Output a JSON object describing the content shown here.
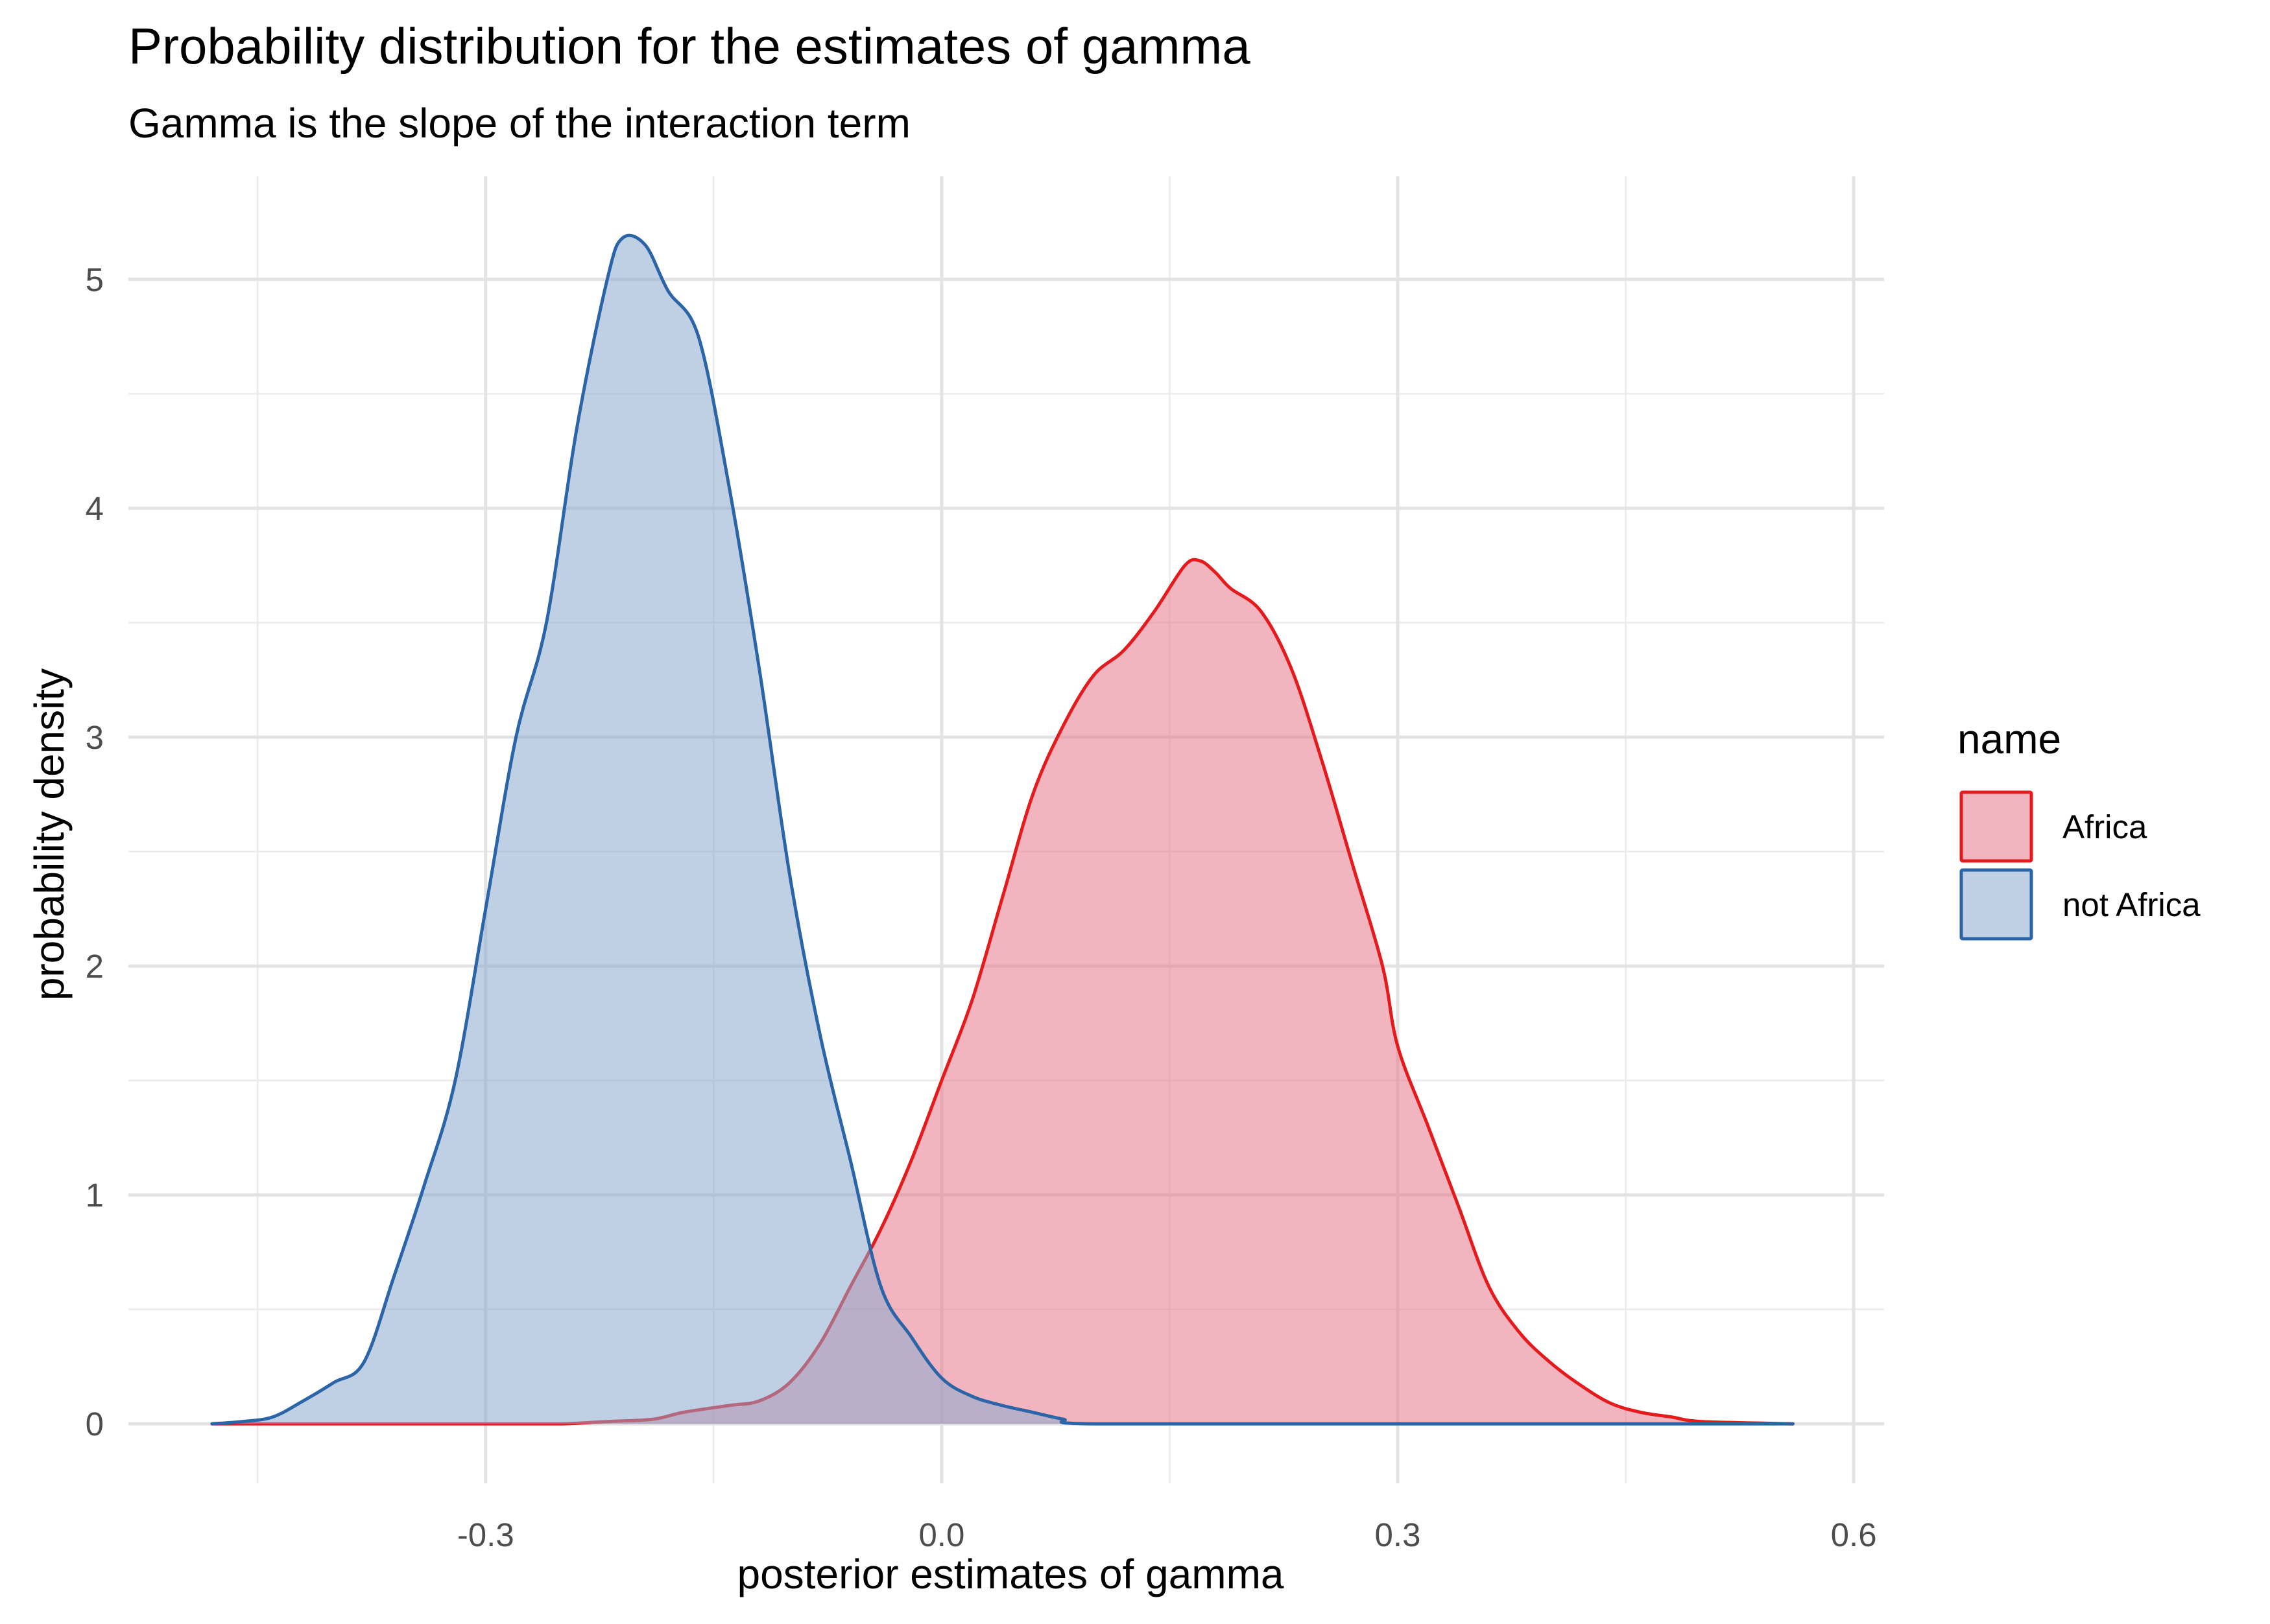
{
  "chart_data": {
    "type": "area",
    "title": "Probability distribution for the estimates of gamma",
    "subtitle": "Gamma is the slope of the interaction term",
    "xlabel": "posterior estimates of gamma",
    "ylabel": "probability density",
    "xlim": [
      -0.535,
      0.62
    ],
    "ylim": [
      -0.26,
      5.45
    ],
    "x_ticks": [
      -0.3,
      0.0,
      0.3,
      0.6
    ],
    "x_tick_labels": [
      "-0.3",
      "0.0",
      "0.3",
      "0.6"
    ],
    "y_ticks": [
      0,
      1,
      2,
      3,
      4,
      5
    ],
    "y_tick_labels": [
      "0",
      "1",
      "2",
      "3",
      "4",
      "5"
    ],
    "grid": true,
    "legend": {
      "title": "name",
      "position": "right"
    },
    "series": [
      {
        "name": "Africa",
        "line_color": "#E41A1C",
        "fill_color": "#E8788C",
        "points": [
          [
            -0.48,
            0.0
          ],
          [
            -0.4,
            0.0
          ],
          [
            -0.3,
            0.0
          ],
          [
            -0.25,
            0.0
          ],
          [
            -0.22,
            0.01
          ],
          [
            -0.19,
            0.02
          ],
          [
            -0.17,
            0.05
          ],
          [
            -0.14,
            0.08
          ],
          [
            -0.12,
            0.1
          ],
          [
            -0.1,
            0.18
          ],
          [
            -0.08,
            0.35
          ],
          [
            -0.06,
            0.6
          ],
          [
            -0.04,
            0.85
          ],
          [
            -0.02,
            1.15
          ],
          [
            0.0,
            1.5
          ],
          [
            0.02,
            1.85
          ],
          [
            0.04,
            2.3
          ],
          [
            0.06,
            2.75
          ],
          [
            0.08,
            3.05
          ],
          [
            0.1,
            3.27
          ],
          [
            0.12,
            3.38
          ],
          [
            0.14,
            3.55
          ],
          [
            0.16,
            3.75
          ],
          [
            0.17,
            3.77
          ],
          [
            0.18,
            3.72
          ],
          [
            0.19,
            3.65
          ],
          [
            0.21,
            3.55
          ],
          [
            0.23,
            3.3
          ],
          [
            0.25,
            2.9
          ],
          [
            0.27,
            2.45
          ],
          [
            0.29,
            2.0
          ],
          [
            0.3,
            1.65
          ],
          [
            0.32,
            1.3
          ],
          [
            0.34,
            0.95
          ],
          [
            0.36,
            0.6
          ],
          [
            0.38,
            0.4
          ],
          [
            0.4,
            0.27
          ],
          [
            0.42,
            0.17
          ],
          [
            0.44,
            0.09
          ],
          [
            0.46,
            0.05
          ],
          [
            0.48,
            0.03
          ],
          [
            0.5,
            0.01
          ],
          [
            0.56,
            0.0
          ]
        ]
      },
      {
        "name": "not Africa",
        "line_color": "#2B65A8",
        "fill_color": "#8AA9CE",
        "points": [
          [
            -0.48,
            0.0
          ],
          [
            -0.46,
            0.01
          ],
          [
            -0.44,
            0.03
          ],
          [
            -0.42,
            0.1
          ],
          [
            -0.4,
            0.18
          ],
          [
            -0.38,
            0.27
          ],
          [
            -0.36,
            0.65
          ],
          [
            -0.34,
            1.05
          ],
          [
            -0.32,
            1.5
          ],
          [
            -0.3,
            2.25
          ],
          [
            -0.28,
            3.0
          ],
          [
            -0.26,
            3.5
          ],
          [
            -0.24,
            4.35
          ],
          [
            -0.22,
            5.0
          ],
          [
            -0.21,
            5.18
          ],
          [
            -0.195,
            5.15
          ],
          [
            -0.18,
            4.95
          ],
          [
            -0.16,
            4.75
          ],
          [
            -0.14,
            4.1
          ],
          [
            -0.12,
            3.3
          ],
          [
            -0.1,
            2.4
          ],
          [
            -0.08,
            1.7
          ],
          [
            -0.06,
            1.15
          ],
          [
            -0.04,
            0.6
          ],
          [
            -0.02,
            0.38
          ],
          [
            0.0,
            0.2
          ],
          [
            0.02,
            0.12
          ],
          [
            0.04,
            0.08
          ],
          [
            0.06,
            0.05
          ],
          [
            0.08,
            0.02
          ],
          [
            0.1,
            0.0
          ],
          [
            0.3,
            0.0
          ],
          [
            0.56,
            0.0
          ]
        ]
      }
    ]
  }
}
